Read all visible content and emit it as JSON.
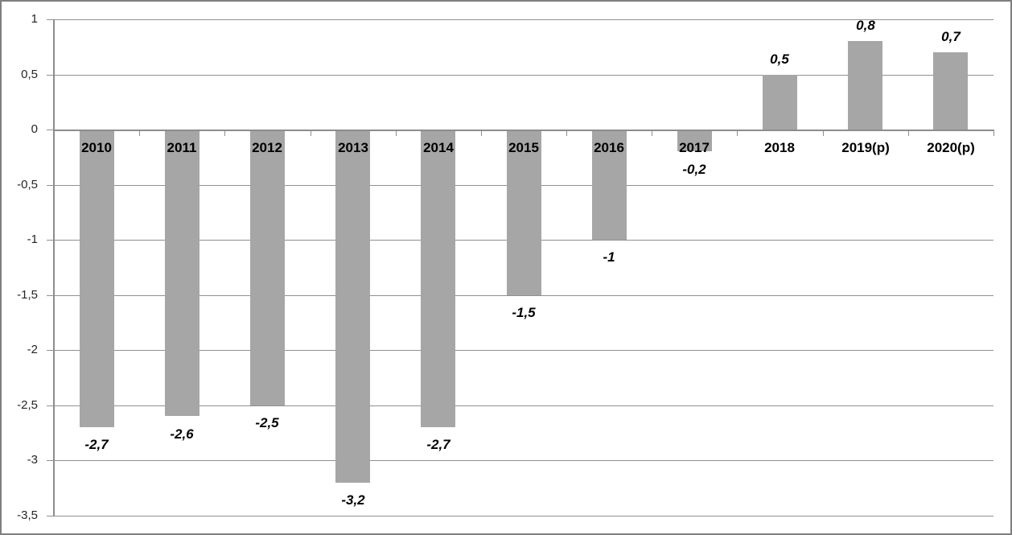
{
  "chart_data": {
    "type": "bar",
    "categories": [
      "2010",
      "2011",
      "2012",
      "2013",
      "2014",
      "2015",
      "2016",
      "2017",
      "2018",
      "2019(p)",
      "2020(p)"
    ],
    "values": [
      -2.7,
      -2.6,
      -2.5,
      -3.2,
      -2.7,
      -1.5,
      -1,
      -0.2,
      0.5,
      0.8,
      0.7
    ],
    "value_labels": [
      "-2,7",
      "-2,6",
      "-2,5",
      "-3,2",
      "-2,7",
      "-1,5",
      "-1",
      "-0,2",
      "0,5",
      "0,8",
      "0,7"
    ],
    "y_axis": {
      "tick_labels": [
        "1",
        "0,5",
        "0",
        "-0,5",
        "-1",
        "-1,5",
        "-2",
        "-2,5",
        "-3",
        "-3,5"
      ],
      "tick_values": [
        1,
        0.5,
        0,
        -0.5,
        -1,
        -1.5,
        -2,
        -2.5,
        -3,
        -3.5
      ],
      "ylim": [
        -3.5,
        1
      ]
    },
    "grid": true,
    "legend_position": "none",
    "colors": {
      "bar_fill": "#a6a6a6",
      "gridline": "#909090",
      "axis_line": "#8c8c8c",
      "y_tick_label_text": "#262626",
      "data_label_text": "#000000",
      "outer_border": "#7f7f7f",
      "background": "#ffffff"
    }
  }
}
